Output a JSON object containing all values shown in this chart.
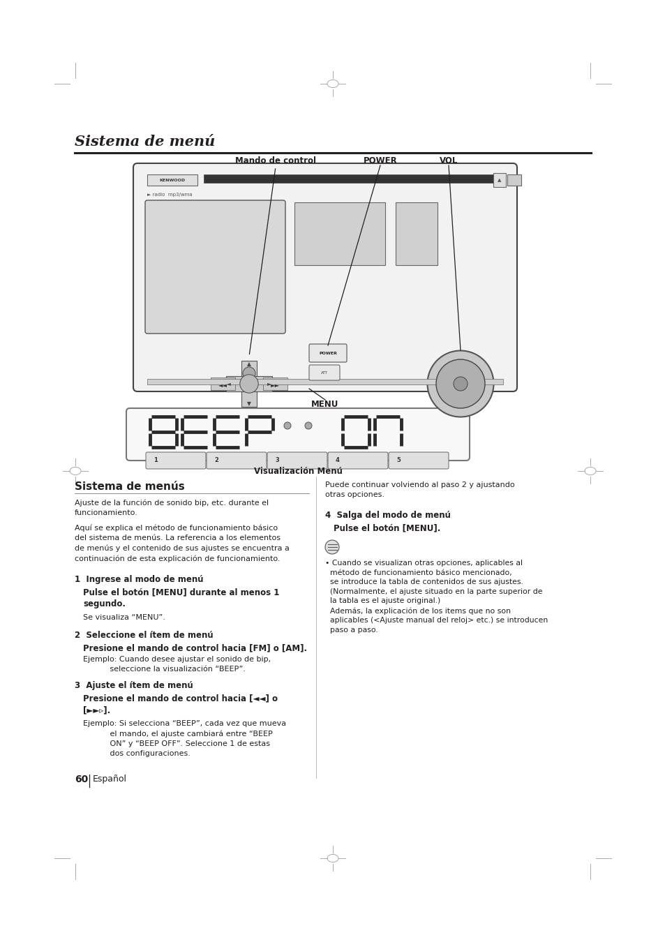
{
  "title": "Sistema de menú",
  "bg_color": "#ffffff",
  "text_color": "#231f20",
  "page_number": "60",
  "page_label": "Español",
  "display_label": "Visualización Menú",
  "section_title": "Sistema de menús",
  "mark_color": "#aaaaaa",
  "label_color": "#231f20"
}
